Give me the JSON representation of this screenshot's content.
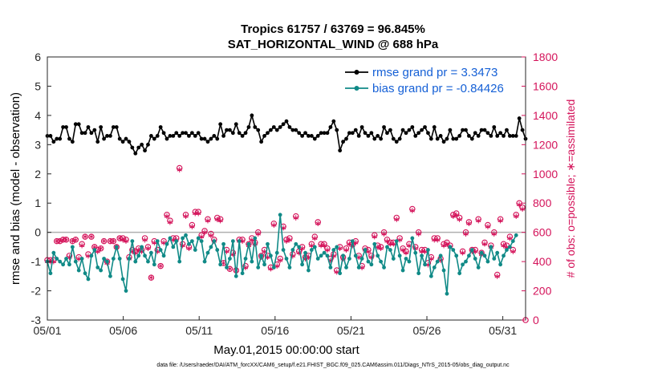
{
  "title_line1": "Tropics 61757 / 63769 = 96.845%",
  "title_line2": "SAT_HORIZONTAL_WIND @ 688 hPa",
  "footer": "data file: /Users/raeder/DAI/ATM_forcXX/CAM6_setup/f.e21.FHIST_BGC.f09_025.CAM6assim.011/Diags_NTrS_2015-05/obs_diag_output.nc",
  "chart_data": {
    "type": "line",
    "title": "Tropics 61757 / 63769 = 96.845%",
    "subtitle": "SAT_HORIZONTAL_WIND @ 688 hPa",
    "xlabel": "May.01,2015 00:00:00 start",
    "ylabel": "rmse and bias (model - observation)",
    "y2label": "# of obs: o=possible; ∗=assimilated",
    "xlim": [
      0,
      31.5
    ],
    "ylim": [
      -3,
      6
    ],
    "y2lim": [
      0,
      1800
    ],
    "x_tick_values": [
      0,
      5,
      10,
      15,
      20,
      25,
      30
    ],
    "x_tick_labels": [
      "05/01",
      "05/06",
      "05/11",
      "05/16",
      "05/21",
      "05/26",
      "05/31"
    ],
    "y_tick_labels": [
      "-3",
      "-2",
      "-1",
      "0",
      "1",
      "2",
      "3",
      "4",
      "5",
      "6"
    ],
    "y2_tick_labels": [
      "0",
      "200",
      "400",
      "600",
      "800",
      "1000",
      "1200",
      "1400",
      "1600",
      "1800"
    ],
    "zero_line": 0,
    "legend": [
      {
        "label": "rmse grand pr = 3.3473",
        "color": "#000000"
      },
      {
        "label": "bias grand pr = -0.84426",
        "color": "#00807f"
      }
    ],
    "colors": {
      "rmse": "#000000",
      "bias": "#108a87",
      "obs": "#d4135a",
      "legend_text": "#1560d6",
      "zero": "#b0b0b0"
    },
    "series": [
      {
        "name": "rmse",
        "axis": "left",
        "values": [
          3.3,
          3.3,
          3.1,
          3.2,
          3.2,
          3.6,
          3.6,
          3.2,
          3.1,
          3.7,
          3.7,
          3.4,
          3.4,
          3.6,
          3.4,
          3.5,
          3.1,
          3.6,
          3.2,
          3.3,
          3.3,
          3.6,
          3.6,
          3.2,
          3.1,
          3.2,
          3.1,
          2.9,
          2.7,
          2.9,
          3.0,
          2.8,
          3.0,
          3.3,
          3.2,
          3.3,
          3.6,
          3.4,
          3.2,
          3.3,
          3.3,
          3.4,
          3.3,
          3.4,
          3.4,
          3.3,
          3.4,
          3.3,
          3.4,
          3.2,
          3.2,
          3.1,
          3.2,
          3.3,
          3.2,
          3.7,
          3.3,
          3.5,
          3.5,
          3.4,
          3.7,
          3.4,
          3.3,
          3.4,
          3.6,
          4.0,
          3.6,
          3.5,
          3.1,
          3.3,
          3.4,
          3.5,
          3.6,
          3.5,
          3.6,
          3.7,
          3.8,
          3.6,
          3.5,
          3.5,
          3.4,
          3.3,
          3.4,
          3.3,
          3.3,
          3.2,
          3.3,
          3.4,
          3.4,
          3.4,
          3.6,
          3.8,
          3.5,
          2.8,
          3.1,
          3.2,
          3.4,
          3.4,
          3.5,
          3.3,
          3.6,
          3.4,
          3.3,
          3.4,
          3.2,
          3.3,
          3.2,
          3.6,
          3.4,
          3.5,
          3.2,
          3.1,
          3.2,
          3.5,
          3.4,
          3.5,
          3.6,
          3.3,
          3.4,
          3.5,
          3.6,
          3.4,
          3.2,
          3.6,
          3.2,
          3.3,
          3.1,
          3.2,
          3.5,
          3.2,
          3.2,
          3.3,
          3.5,
          3.5,
          3.3,
          3.2,
          3.4,
          3.3,
          3.5,
          3.5,
          3.4,
          3.3,
          3.6,
          3.3,
          3.4,
          3.3,
          3.5,
          3.3,
          3.3,
          3.3,
          3.9,
          3.5,
          3.2
        ]
      },
      {
        "name": "bias",
        "axis": "left",
        "values": [
          -1.0,
          -1.4,
          -0.7,
          -0.9,
          -1.0,
          -1.1,
          -0.9,
          -1.1,
          -0.5,
          -1.0,
          -1.3,
          -0.9,
          -1.4,
          -1.6,
          -0.8,
          -0.6,
          -1.2,
          -1.3,
          -0.9,
          -1.0,
          -1.5,
          -0.9,
          -0.5,
          -0.9,
          -1.6,
          -2.0,
          -0.9,
          -0.3,
          -1.0,
          -0.8,
          -0.5,
          -0.8,
          -1.0,
          -0.7,
          -1.1,
          -0.3,
          -0.6,
          -0.8,
          -0.4,
          -0.2,
          -0.5,
          -0.3,
          -1.0,
          -0.2,
          -0.1,
          -0.4,
          -0.3,
          -0.6,
          -0.2,
          -0.3,
          -1.0,
          -0.7,
          -0.5,
          -0.3,
          -0.6,
          -1.1,
          -0.4,
          -1.2,
          -0.9,
          -0.3,
          -1.5,
          -0.3,
          -1.4,
          -0.9,
          -0.4,
          -1.0,
          -0.2,
          -1.2,
          -0.8,
          -1.1,
          -0.4,
          -0.8,
          -1.2,
          -0.7,
          0.6,
          -0.6,
          -0.9,
          -1.2,
          -0.6,
          -0.4,
          -0.5,
          -1.1,
          -0.7,
          -1.3,
          -0.6,
          -0.5,
          -0.9,
          -0.8,
          -0.7,
          -0.8,
          -1.2,
          -0.6,
          -0.5,
          -1.4,
          -0.8,
          -1.2,
          -0.9,
          -0.3,
          -0.8,
          -1.2,
          -0.9,
          -0.6,
          -1.0,
          -1.1,
          -0.4,
          -0.8,
          -1.0,
          -1.2,
          -0.5,
          -0.6,
          -0.9,
          -0.3,
          -0.8,
          -1.3,
          -0.9,
          -1.0,
          -0.2,
          -0.7,
          -1.4,
          -0.8,
          -1.1,
          -0.6,
          -1.5,
          -1.2,
          -1.0,
          -0.8,
          -1.3,
          -2.1,
          -0.5,
          -0.6,
          -0.8,
          -1.4,
          -1.1,
          -1.0,
          -0.8,
          -0.6,
          -0.9,
          -1.2,
          -0.7,
          -0.8,
          -1.0,
          -0.5,
          -0.9,
          -0.7,
          -1.1,
          -0.8,
          -0.6,
          -0.5,
          -0.3,
          -0.1
        ]
      },
      {
        "name": "obs possible",
        "axis": "right",
        "values": [
          410,
          410,
          410,
          540,
          540,
          550,
          550,
          440,
          540,
          550,
          430,
          520,
          570,
          450,
          570,
          500,
          480,
          490,
          540,
          400,
          540,
          540,
          500,
          560,
          560,
          550,
          430,
          480,
          470,
          490,
          480,
          560,
          500,
          290,
          540,
          480,
          370,
          540,
          720,
          680,
          560,
          560,
          1040,
          520,
          720,
          500,
          650,
          740,
          740,
          580,
          610,
          690,
          590,
          550,
          700,
          690,
          390,
          480,
          350,
          460,
          340,
          550,
          550,
          370,
          520,
          560,
          530,
          600,
          440,
          480,
          440,
          360,
          660,
          380,
          420,
          640,
          550,
          560,
          450,
          710,
          470,
          500,
          430,
          440,
          520,
          570,
          670,
          520,
          520,
          490,
          420,
          450,
          340,
          500,
          430,
          490,
          530,
          520,
          540,
          440,
          370,
          490,
          480,
          440,
          580,
          510,
          500,
          600,
          550,
          530,
          530,
          700,
          560,
          490,
          470,
          520,
          760,
          500,
          600,
          480,
          480,
          390,
          430,
          560,
          560,
          420,
          520,
          530,
          510,
          720,
          730,
          700,
          470,
          600,
          670,
          480,
          480,
          690,
          460,
          530,
          650,
          510,
          600,
          310,
          690,
          520,
          510,
          570,
          480,
          720,
          800,
          770
        ]
      },
      {
        "name": "obs assimilated",
        "axis": "right",
        "values": [
          400,
          400,
          400,
          540,
          540,
          550,
          550,
          430,
          540,
          550,
          420,
          510,
          570,
          440,
          570,
          500,
          470,
          490,
          540,
          390,
          540,
          540,
          500,
          560,
          550,
          540,
          420,
          470,
          460,
          480,
          470,
          550,
          490,
          290,
          530,
          470,
          370,
          530,
          710,
          670,
          550,
          550,
          1030,
          510,
          710,
          490,
          640,
          730,
          730,
          570,
          600,
          680,
          580,
          540,
          690,
          680,
          390,
          470,
          350,
          450,
          340,
          540,
          540,
          360,
          510,
          550,
          520,
          590,
          430,
          470,
          430,
          350,
          650,
          370,
          410,
          630,
          540,
          550,
          440,
          700,
          460,
          490,
          420,
          430,
          510,
          560,
          660,
          510,
          510,
          480,
          410,
          440,
          330,
          490,
          420,
          480,
          520,
          510,
          530,
          430,
          360,
          480,
          470,
          430,
          570,
          500,
          490,
          590,
          540,
          520,
          520,
          690,
          550,
          480,
          460,
          510,
          750,
          490,
          590,
          470,
          470,
          380,
          420,
          550,
          550,
          410,
          510,
          520,
          500,
          710,
          720,
          690,
          460,
          590,
          660,
          470,
          470,
          680,
          450,
          520,
          640,
          500,
          590,
          300,
          680,
          510,
          500,
          560,
          470,
          710,
          790,
          760
        ]
      }
    ]
  }
}
